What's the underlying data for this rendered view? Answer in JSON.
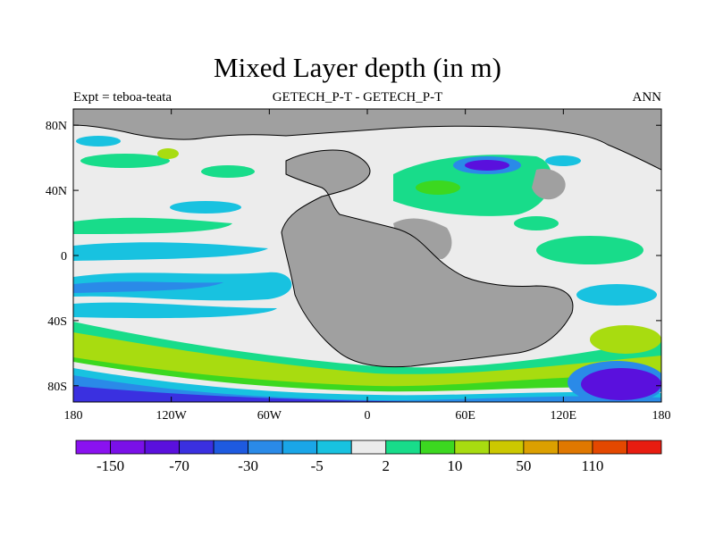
{
  "title": "Mixed Layer depth (in m)",
  "left_label": "Expt = teboa-teata",
  "center_label": "GETECH_P-T - GETECH_P-T",
  "right_label": "ANN",
  "lon_ticks": [
    {
      "value": -180,
      "label": "180"
    },
    {
      "value": -120,
      "label": "120W"
    },
    {
      "value": -60,
      "label": "60W"
    },
    {
      "value": 0,
      "label": "0"
    },
    {
      "value": 60,
      "label": "60E"
    },
    {
      "value": 120,
      "label": "120E"
    },
    {
      "value": 180,
      "label": "180"
    }
  ],
  "lat_ticks": [
    {
      "value": 80,
      "label": "80N"
    },
    {
      "value": 40,
      "label": "40N"
    },
    {
      "value": 0,
      "label": "0"
    },
    {
      "value": -40,
      "label": "40S"
    },
    {
      "value": -80,
      "label": "80S"
    }
  ],
  "lat_range": [
    -90,
    90
  ],
  "lon_range": [
    -180,
    180
  ],
  "colorbar": {
    "colors": [
      "#8a12f0",
      "#7a10e8",
      "#5a10dd",
      "#3a30e0",
      "#1e5ae0",
      "#2a8ae8",
      "#1aa6e8",
      "#18c2e0",
      "#ececec",
      "#18dc8a",
      "#3cd820",
      "#a8dc10",
      "#ccc800",
      "#dca000",
      "#e07800",
      "#e44800",
      "#e81c10"
    ],
    "labels": [
      {
        "after_box": 1,
        "text": "-150"
      },
      {
        "after_box": 3,
        "text": "-70"
      },
      {
        "after_box": 5,
        "text": "-30"
      },
      {
        "after_box": 7,
        "text": "-5"
      },
      {
        "after_box": 9,
        "text": "2"
      },
      {
        "after_box": 11,
        "text": "10"
      },
      {
        "after_box": 13,
        "text": "50"
      },
      {
        "after_box": 15,
        "text": "110"
      }
    ]
  },
  "colors": {
    "land": "#a0a0a0",
    "ocean_near_zero": "#ececec",
    "positive_small": "#18dc8a",
    "positive_mid": "#3cd820",
    "positive_high": "#a8dc10",
    "negative_small": "#18c2e0",
    "negative_mid": "#2a8ae8",
    "negative_high": "#5a10dd"
  }
}
